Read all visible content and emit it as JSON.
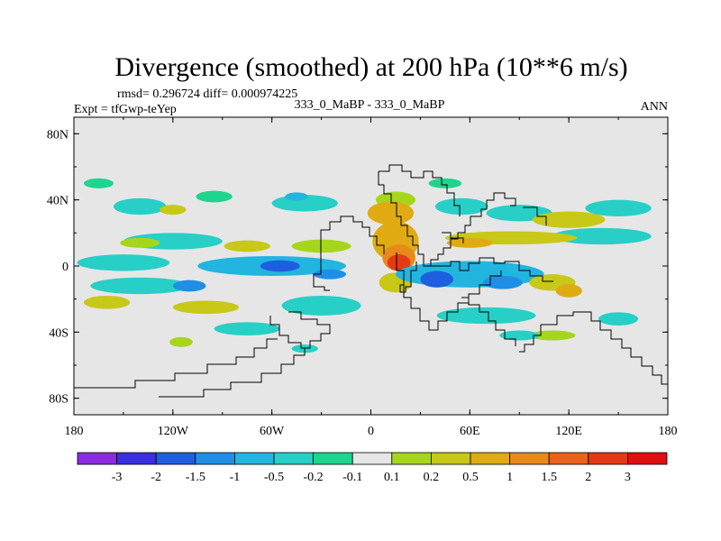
{
  "chart_data": {
    "type": "heatmap",
    "title": "Divergence (smoothed) at 200 hPa (10**6 m/s)",
    "stats": "rmsd= 0.296724 diff= 0.000974225",
    "left_label": "Expt = tfGwp-teYep",
    "center_label": "333_0_MaBP - 333_0_MaBP",
    "right_label": "ANN",
    "x_range": [
      -180,
      180
    ],
    "y_range": [
      -90,
      90
    ],
    "xticks": [
      {
        "value": -180,
        "label": "180"
      },
      {
        "value": -120,
        "label": "120W"
      },
      {
        "value": -60,
        "label": "60W"
      },
      {
        "value": 0,
        "label": "0"
      },
      {
        "value": 60,
        "label": "60E"
      },
      {
        "value": 120,
        "label": "120E"
      },
      {
        "value": 180,
        "label": "180"
      }
    ],
    "yticks": [
      {
        "value": 80,
        "label": "80N"
      },
      {
        "value": 40,
        "label": "40N"
      },
      {
        "value": 0,
        "label": "0"
      },
      {
        "value": -40,
        "label": "40S"
      },
      {
        "value": -80,
        "label": "80S"
      }
    ],
    "colorbar": {
      "colors": [
        "#8a2be2",
        "#3a2fe0",
        "#1e5fe0",
        "#1f8fe6",
        "#21b5e0",
        "#27cfc6",
        "#1ed48e",
        "#e6e6e6",
        "#a6d61c",
        "#c8c818",
        "#e0ab12",
        "#e8891a",
        "#e8621a",
        "#e43a14",
        "#e01010"
      ],
      "labels": [
        "-3",
        "-2",
        "-1.5",
        "-1",
        "-0.5",
        "-0.2",
        "-0.1",
        "0.1",
        "0.2",
        "0.5",
        "1",
        "1.5",
        "2",
        "3"
      ]
    },
    "field_blobs": [
      {
        "lon": -165,
        "lat": 50,
        "rlon": 9,
        "rlat": 3,
        "level": 6
      },
      {
        "lon": -140,
        "lat": 36,
        "rlon": 16,
        "rlat": 5,
        "level": 5
      },
      {
        "lon": -120,
        "lat": 34,
        "rlon": 8,
        "rlat": 3,
        "level": 9
      },
      {
        "lon": -95,
        "lat": 42,
        "rlon": 11,
        "rlat": 3.5,
        "level": 6
      },
      {
        "lon": -40,
        "lat": 38,
        "rlon": 20,
        "rlat": 5,
        "level": 5
      },
      {
        "lon": -45,
        "lat": 42,
        "rlon": 7,
        "rlat": 2.5,
        "level": 4
      },
      {
        "lon": -120,
        "lat": 15,
        "rlon": 30,
        "rlat": 5,
        "level": 5
      },
      {
        "lon": -140,
        "lat": 14,
        "rlon": 12,
        "rlat": 3,
        "level": 8
      },
      {
        "lon": -75,
        "lat": 12,
        "rlon": 14,
        "rlat": 3.5,
        "level": 9
      },
      {
        "lon": -30,
        "lat": 12,
        "rlon": 18,
        "rlat": 4,
        "level": 8
      },
      {
        "lon": -150,
        "lat": 2,
        "rlon": 28,
        "rlat": 5,
        "level": 5
      },
      {
        "lon": -60,
        "lat": 0,
        "rlon": 45,
        "rlat": 6,
        "level": 4
      },
      {
        "lon": -55,
        "lat": 0,
        "rlon": 12,
        "rlat": 3.5,
        "level": 2
      },
      {
        "lon": -25,
        "lat": -5,
        "rlon": 10,
        "rlat": 3,
        "level": 3
      },
      {
        "lon": -140,
        "lat": -12,
        "rlon": 30,
        "rlat": 5,
        "level": 5
      },
      {
        "lon": -110,
        "lat": -12,
        "rlon": 10,
        "rlat": 3.5,
        "level": 3
      },
      {
        "lon": -160,
        "lat": -22,
        "rlon": 14,
        "rlat": 4,
        "level": 9
      },
      {
        "lon": -100,
        "lat": -25,
        "rlon": 20,
        "rlat": 4,
        "level": 9
      },
      {
        "lon": -30,
        "lat": -24,
        "rlon": 24,
        "rlat": 6,
        "level": 5
      },
      {
        "lon": -75,
        "lat": -38,
        "rlon": 20,
        "rlat": 4,
        "level": 5
      },
      {
        "lon": -115,
        "lat": -46,
        "rlon": 7,
        "rlat": 3,
        "level": 8
      },
      {
        "lon": -40,
        "lat": -50,
        "rlon": 8,
        "rlat": 2.5,
        "level": 5
      },
      {
        "lon": 15,
        "lat": 40,
        "rlon": 12,
        "rlat": 5,
        "level": 8
      },
      {
        "lon": 12,
        "lat": 32,
        "rlon": 14,
        "rlat": 7,
        "level": 10
      },
      {
        "lon": 15,
        "lat": 15,
        "rlon": 14,
        "rlat": 12,
        "level": 10
      },
      {
        "lon": 17,
        "lat": 5,
        "rlon": 10,
        "rlat": 8,
        "level": 11
      },
      {
        "lon": 17,
        "lat": 2,
        "rlon": 7,
        "rlat": 5,
        "level": 13
      },
      {
        "lon": 15,
        "lat": -10,
        "rlon": 10,
        "rlat": 6,
        "level": 9
      },
      {
        "lon": 45,
        "lat": 50,
        "rlon": 10,
        "rlat": 3,
        "level": 6
      },
      {
        "lon": 55,
        "lat": 36,
        "rlon": 16,
        "rlat": 5,
        "level": 5
      },
      {
        "lon": 90,
        "lat": 32,
        "rlon": 20,
        "rlat": 5,
        "level": 5
      },
      {
        "lon": 120,
        "lat": 28,
        "rlon": 22,
        "rlat": 5,
        "level": 9
      },
      {
        "lon": 150,
        "lat": 35,
        "rlon": 20,
        "rlat": 5,
        "level": 5
      },
      {
        "lon": 140,
        "lat": 18,
        "rlon": 30,
        "rlat": 5,
        "level": 5
      },
      {
        "lon": 85,
        "lat": 17,
        "rlon": 40,
        "rlat": 4,
        "level": 9
      },
      {
        "lon": 60,
        "lat": 14,
        "rlon": 14,
        "rlat": 3,
        "level": 10
      },
      {
        "lon": 60,
        "lat": -5,
        "rlon": 45,
        "rlat": 8,
        "level": 4
      },
      {
        "lon": 40,
        "lat": -8,
        "rlon": 10,
        "rlat": 5,
        "level": 2
      },
      {
        "lon": 80,
        "lat": -10,
        "rlon": 12,
        "rlat": 4,
        "level": 3
      },
      {
        "lon": 110,
        "lat": -10,
        "rlon": 14,
        "rlat": 5,
        "level": 9
      },
      {
        "lon": 120,
        "lat": -15,
        "rlon": 8,
        "rlat": 4,
        "level": 10
      },
      {
        "lon": 70,
        "lat": -30,
        "rlon": 30,
        "rlat": 5,
        "level": 5
      },
      {
        "lon": 110,
        "lat": -42,
        "rlon": 14,
        "rlat": 3,
        "level": 8
      },
      {
        "lon": 90,
        "lat": -42,
        "rlon": 12,
        "rlat": 3,
        "level": 5
      },
      {
        "lon": 150,
        "lat": -32,
        "rlon": 12,
        "rlat": 4,
        "level": 5
      }
    ]
  }
}
